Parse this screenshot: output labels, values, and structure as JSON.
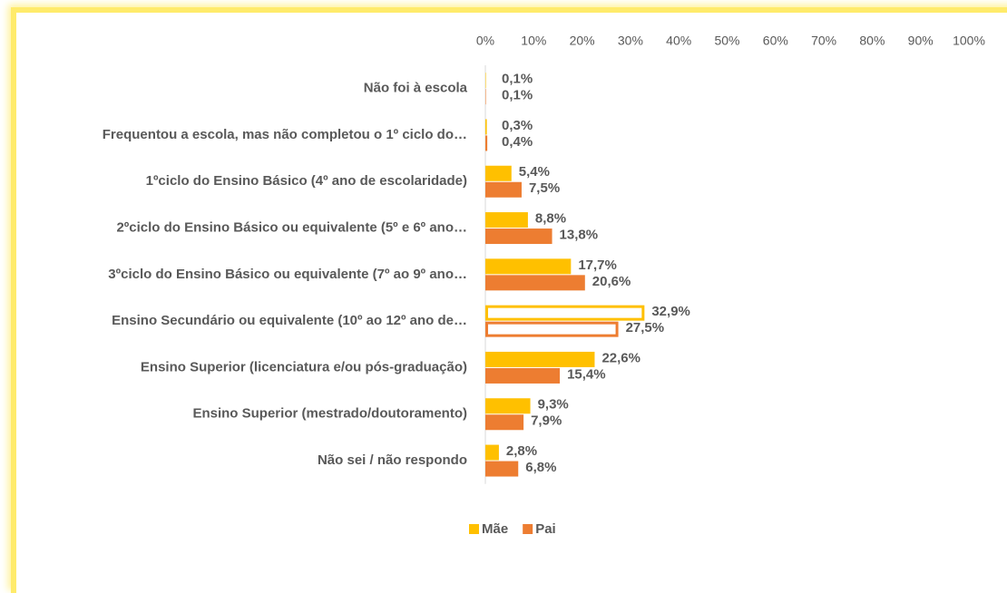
{
  "chart_data": {
    "type": "bar",
    "orientation": "horizontal",
    "categories": [
      "Não foi à escola",
      "Frequentou a escola, mas não completou o 1º ciclo do…",
      "1ºciclo do Ensino Básico (4º ano de escolaridade)",
      "2ºciclo do Ensino Básico ou equivalente (5º e 6º ano…",
      "3ºciclo do Ensino Básico ou equivalente (7º ao 9º ano…",
      "Ensino Secundário ou equivalente (10º ao 12º ano de…",
      "Ensino Superior (licenciatura e/ou pós-graduação)",
      "Ensino Superior (mestrado/doutoramento)",
      "Não sei / não respondo"
    ],
    "series": [
      {
        "name": "Mãe",
        "color": "#ffc000",
        "values": [
          0.1,
          0.3,
          5.4,
          8.8,
          17.7,
          32.9,
          22.6,
          9.3,
          2.8
        ],
        "value_labels": [
          "0,1%",
          "0,3%",
          "5,4%",
          "8,8%",
          "17,7%",
          "32,9%",
          "22,6%",
          "9,3%",
          "2,8%"
        ]
      },
      {
        "name": "Pai",
        "color": "#ed7d31",
        "values": [
          0.1,
          0.4,
          7.5,
          13.8,
          20.6,
          27.5,
          15.4,
          7.9,
          6.8
        ],
        "value_labels": [
          "0,1%",
          "0,4%",
          "7,5%",
          "13,8%",
          "20,6%",
          "27,5%",
          "15,4%",
          "7,9%",
          "6,8%"
        ]
      }
    ],
    "xlim": [
      0,
      100
    ],
    "xticks": [
      {
        "value": 0,
        "label": "0%"
      },
      {
        "value": 10,
        "label": "10%"
      },
      {
        "value": 20,
        "label": "20%"
      },
      {
        "value": 30,
        "label": "30%"
      },
      {
        "value": 40,
        "label": "40%"
      },
      {
        "value": 50,
        "label": "50%"
      },
      {
        "value": 60,
        "label": "60%"
      },
      {
        "value": 70,
        "label": "70%"
      },
      {
        "value": 80,
        "label": "80%"
      },
      {
        "value": 90,
        "label": "90%"
      },
      {
        "value": 100,
        "label": "100%"
      }
    ],
    "highlight_index": 5,
    "legend": "bottom"
  }
}
